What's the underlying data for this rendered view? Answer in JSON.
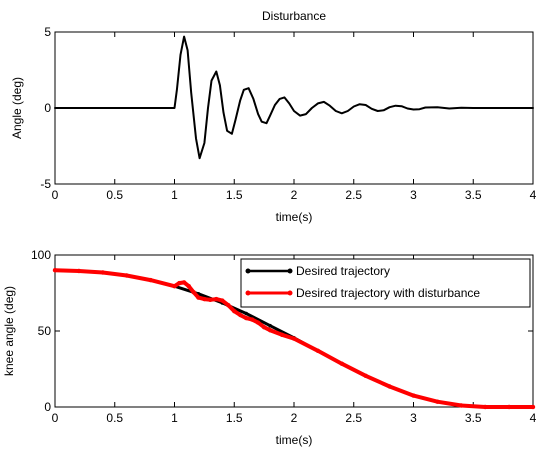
{
  "chart_data": [
    {
      "type": "line",
      "title": "Disturbance",
      "xlabel": "time(s)",
      "ylabel": "Angle (deg)",
      "xlim": [
        0,
        4
      ],
      "ylim": [
        -5,
        5
      ],
      "xticks": [
        "0",
        "0.5",
        "1",
        "1.5",
        "2",
        "2.5",
        "3",
        "3.5",
        "4"
      ],
      "yticks": [
        "-5",
        "0",
        "5"
      ],
      "grid": false,
      "line_color": "#000000",
      "series": [
        {
          "name": "",
          "x": [
            0,
            1.0,
            1.02,
            1.05,
            1.08,
            1.11,
            1.14,
            1.18,
            1.21,
            1.25,
            1.28,
            1.31,
            1.35,
            1.38,
            1.41,
            1.44,
            1.48,
            1.51,
            1.55,
            1.58,
            1.62,
            1.66,
            1.7,
            1.73,
            1.77,
            1.8,
            1.84,
            1.88,
            1.92,
            1.96,
            2.0,
            2.05,
            2.1,
            2.15,
            2.2,
            2.25,
            2.3,
            2.35,
            2.4,
            2.45,
            2.5,
            2.55,
            2.6,
            2.65,
            2.7,
            2.75,
            2.8,
            2.85,
            2.9,
            2.95,
            3.0,
            3.05,
            3.1,
            3.2,
            3.3,
            3.4,
            3.5,
            4.0
          ],
          "y": [
            0,
            0,
            1.2,
            3.5,
            4.7,
            3.8,
            1.0,
            -2.0,
            -3.3,
            -2.3,
            0.0,
            1.8,
            2.4,
            1.5,
            -0.3,
            -1.5,
            -1.7,
            -0.8,
            0.5,
            1.2,
            1.3,
            0.6,
            -0.4,
            -0.9,
            -1.0,
            -0.5,
            0.2,
            0.6,
            0.7,
            0.3,
            -0.2,
            -0.5,
            -0.4,
            0.0,
            0.3,
            0.4,
            0.15,
            -0.2,
            -0.35,
            -0.2,
            0.1,
            0.25,
            0.2,
            -0.05,
            -0.2,
            -0.15,
            0.05,
            0.15,
            0.12,
            -0.03,
            -0.1,
            -0.08,
            0.03,
            0.05,
            -0.03,
            0.02,
            0,
            0
          ]
        }
      ]
    },
    {
      "type": "line",
      "title": "",
      "xlabel": "time(s)",
      "ylabel": "knee angle (deg)",
      "xlim": [
        0,
        4
      ],
      "ylim": [
        0,
        100
      ],
      "xticks": [
        "0",
        "0.5",
        "1",
        "1.5",
        "2",
        "2.5",
        "3",
        "3.5",
        "4"
      ],
      "yticks": [
        "0",
        "50",
        "100"
      ],
      "grid": false,
      "legend": "top-right",
      "series": [
        {
          "name": "Desired trajectory",
          "color": "#000000",
          "x": [
            0,
            0.2,
            0.4,
            0.6,
            0.8,
            1.0,
            1.2,
            1.4,
            1.6,
            1.8,
            2.0,
            2.2,
            2.4,
            2.6,
            2.8,
            3.0,
            3.2,
            3.4,
            3.6,
            3.8,
            4.0
          ],
          "y": [
            90,
            89.5,
            88.5,
            86.5,
            83.5,
            79.5,
            74.5,
            68.5,
            61.5,
            53.5,
            45.5,
            37.0,
            28.5,
            20.5,
            13.5,
            7.5,
            3.5,
            1.0,
            0.0,
            0.0,
            0.0
          ]
        },
        {
          "name": "Desired trajectory with disturbance",
          "color": "#ff0000",
          "x": [
            0,
            0.2,
            0.4,
            0.6,
            0.8,
            1.0,
            1.04,
            1.08,
            1.12,
            1.16,
            1.2,
            1.25,
            1.3,
            1.35,
            1.4,
            1.45,
            1.5,
            1.55,
            1.6,
            1.65,
            1.7,
            1.75,
            1.8,
            1.9,
            2.0,
            2.2,
            2.4,
            2.6,
            2.8,
            3.0,
            3.2,
            3.4,
            3.6,
            3.8,
            4.0
          ],
          "y": [
            90,
            89.5,
            88.5,
            86.5,
            83.5,
            79.5,
            81.5,
            82.0,
            79.5,
            75.5,
            72.0,
            71.0,
            70.5,
            71.0,
            70.0,
            67.0,
            63.0,
            60.5,
            58.5,
            57.5,
            55.5,
            52.5,
            50.5,
            47.5,
            45.0,
            37.0,
            28.5,
            20.5,
            13.5,
            7.5,
            3.5,
            1.0,
            0.0,
            0.0,
            0.0
          ]
        }
      ]
    }
  ]
}
